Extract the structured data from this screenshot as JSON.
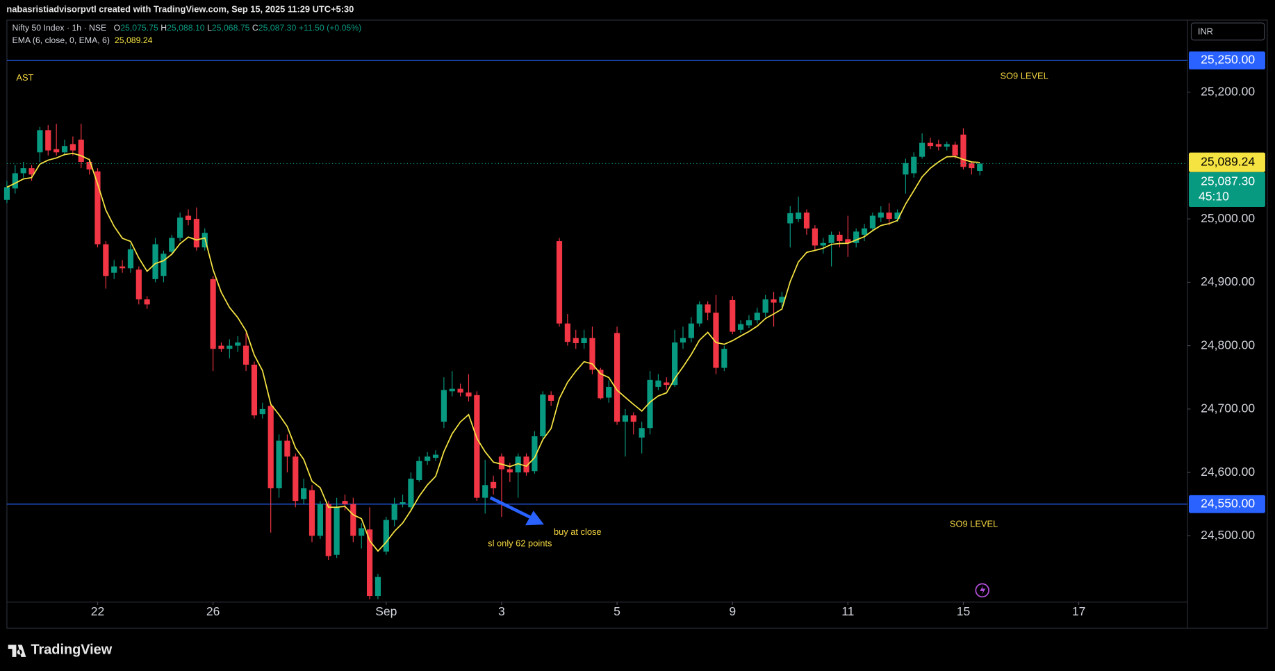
{
  "header": {
    "caption": "nabasristiadvisorpvtl created with TradingView.com, Sep 15, 2025 11:29 UTC+5:30",
    "currency": "INR",
    "brand": "TradingView"
  },
  "legend": {
    "symbol": "Nifty 50 Index · 1h · NSE",
    "ohlc_letters": [
      "O",
      "H",
      "L",
      "C"
    ],
    "open": "25,075.75",
    "high": "25,088.10",
    "low": "25,068.75",
    "close": "25,087.30",
    "change": "+11.50 (+0.05%)"
  },
  "annotations": {
    "ast": "AST",
    "so9_top": "SO9 LEVEL",
    "so9_bottom": "SO9 LEVEL",
    "buy": "buy at close",
    "sl": "sl only 62 points"
  },
  "chart_data": {
    "type": "candlestick",
    "up_color": "#089981",
    "down_color": "#f23645",
    "open": [
      25030,
      25048,
      25072,
      25080,
      25105,
      25140,
      25110,
      25105,
      25118,
      25125,
      25090,
      25075,
      24960,
      24915,
      24925,
      24922,
      24920,
      24873,
      24905,
      24910,
      24948,
      24970,
      25005,
      25000,
      24955,
      24905,
      24800,
      24795,
      24800,
      24800,
      24770,
      24692,
      24705,
      24575,
      24650,
      24625,
      24558,
      24572,
      24500,
      24550,
      24470,
      24555,
      24550,
      24500,
      24510,
      24405,
      24475,
      24525,
      24550,
      24545,
      24588,
      24618,
      24623,
      24680,
      24728,
      24732,
      24726,
      24722,
      24560,
      24585,
      24625,
      24605,
      24600,
      24625,
      24602,
      24657,
      24722,
      24965,
      24835,
      24812,
      24804,
      24812,
      24762,
      24718,
      24820,
      24680,
      24690,
      24655,
      24670,
      24735,
      24742,
      24738,
      24805,
      24812,
      24835,
      24865,
      24852,
      24765,
      24872,
      24825,
      24832,
      24840,
      24852,
      24873,
      24868,
      24993,
      25000,
      25010,
      24985,
      24958,
      24962,
      24975,
      24968,
      24962,
      24975,
      24985,
      25002,
      25010,
      25000,
      25070,
      25072,
      25098,
      25120,
      25118,
      25114,
      25117,
      25133,
      25088,
      25075.75
    ],
    "high": [
      25060,
      25085,
      25090,
      25085,
      25145,
      25148,
      25150,
      25125,
      25130,
      25150,
      25095,
      25080,
      24965,
      24935,
      24935,
      24960,
      24925,
      24878,
      24970,
      24950,
      24975,
      25010,
      25015,
      25018,
      24985,
      24910,
      24805,
      24810,
      24815,
      24820,
      24775,
      24710,
      24710,
      24660,
      24660,
      24630,
      24590,
      24580,
      24555,
      24555,
      24560,
      24565,
      24560,
      24520,
      24545,
      24440,
      24530,
      24560,
      24565,
      24600,
      24625,
      24632,
      24635,
      24750,
      24760,
      24740,
      24755,
      24728,
      24620,
      24595,
      24630,
      24615,
      24630,
      24630,
      24665,
      24728,
      24728,
      24970,
      24850,
      24825,
      24825,
      24830,
      24765,
      24745,
      24830,
      24700,
      24695,
      24680,
      24760,
      24755,
      24750,
      24825,
      24830,
      24845,
      24870,
      24870,
      24880,
      24800,
      24878,
      24840,
      24848,
      24860,
      24880,
      24885,
      24885,
      25020,
      25035,
      25015,
      24990,
      24970,
      24980,
      24980,
      25005,
      24985,
      24992,
      25010,
      25020,
      25025,
      25015,
      25095,
      25105,
      25135,
      25128,
      25125,
      25122,
      25122,
      25143,
      25090,
      25088.1
    ],
    "low": [
      25025,
      25040,
      25065,
      25060,
      25090,
      25100,
      25100,
      25100,
      25100,
      25080,
      25070,
      24955,
      24890,
      24905,
      24915,
      24915,
      24865,
      24858,
      24900,
      24900,
      24945,
      24965,
      24990,
      24950,
      24950,
      24760,
      24790,
      24780,
      24790,
      24760,
      24685,
      24685,
      24505,
      24560,
      24600,
      24545,
      24550,
      24490,
      24495,
      24462,
      24465,
      24540,
      24490,
      24480,
      24400,
      24400,
      24470,
      24515,
      24545,
      24540,
      24585,
      24612,
      24618,
      24670,
      24720,
      24720,
      24712,
      24555,
      24535,
      24565,
      24530,
      24585,
      24560,
      24595,
      24598,
      24650,
      24705,
      24830,
      24800,
      24795,
      24795,
      24755,
      24715,
      24710,
      24675,
      24625,
      24660,
      24630,
      24660,
      24730,
      24730,
      24735,
      24795,
      24805,
      24830,
      24840,
      24755,
      24760,
      24818,
      24820,
      24828,
      24835,
      24845,
      24830,
      24860,
      24955,
      24995,
      24975,
      24950,
      24945,
      24925,
      24955,
      24940,
      24955,
      24965,
      24980,
      24995,
      24990,
      24995,
      25040,
      25065,
      25095,
      25110,
      25108,
      25108,
      25095,
      25078,
      25070,
      25068.75
    ],
    "close": [
      25050,
      25072,
      25080,
      25070,
      25140,
      25108,
      25105,
      25115,
      25108,
      25090,
      25078,
      24960,
      24910,
      24925,
      24922,
      24952,
      24873,
      24865,
      24960,
      24945,
      24970,
      25002,
      24998,
      24955,
      24978,
      24795,
      24795,
      24800,
      24805,
      24770,
      24690,
      24700,
      24575,
      24650,
      24625,
      24555,
      24575,
      24500,
      24550,
      24468,
      24545,
      24550,
      24500,
      24512,
      24405,
      24435,
      24525,
      24550,
      24553,
      24590,
      24618,
      24625,
      24628,
      24730,
      24732,
      24726,
      24720,
      24560,
      24580,
      24575,
      24605,
      24600,
      24625,
      24600,
      24657,
      24723,
      24713,
      24835,
      24806,
      24804,
      24812,
      24762,
      24717,
      24735,
      24680,
      24690,
      24680,
      24670,
      24746,
      24745,
      24738,
      24805,
      24812,
      24835,
      24865,
      24852,
      24765,
      24795,
      24822,
      24834,
      24840,
      24852,
      24873,
      24868,
      24877,
      25009,
      25010,
      24985,
      24958,
      24962,
      24975,
      24965,
      24962,
      24980,
      24985,
      25005,
      25010,
      25000,
      25010,
      25088,
      25098,
      25120,
      25115,
      25114,
      25118,
      25100,
      25082,
      25080,
      25087.3
    ],
    "xlim": [
      0,
      143
    ],
    "ylim": [
      24396,
      25313
    ],
    "xticks": [
      {
        "value": 11,
        "label": "22"
      },
      {
        "value": 25,
        "label": "26"
      },
      {
        "value": 46,
        "label": "Sep"
      },
      {
        "value": 60,
        "label": "3"
      },
      {
        "value": 74,
        "label": "5"
      },
      {
        "value": 88,
        "label": "9"
      },
      {
        "value": 102,
        "label": "11"
      },
      {
        "value": 116,
        "label": "15"
      },
      {
        "value": 130,
        "label": "17"
      }
    ],
    "yticks": [
      {
        "value": 24500,
        "label": "24,500.00"
      },
      {
        "value": 24600,
        "label": "24,600.00"
      },
      {
        "value": 24700,
        "label": "24,700.00"
      },
      {
        "value": 24800,
        "label": "24,800.00"
      },
      {
        "value": 24900,
        "label": "24,900.00"
      },
      {
        "value": 25000,
        "label": "25,000.00"
      },
      {
        "value": 25200,
        "label": "25,200.00"
      }
    ],
    "levels": [
      {
        "value": 25250,
        "label": "25,250.00",
        "color": "#2962ff"
      },
      {
        "value": 24550,
        "label": "24,550.00",
        "color": "#2962ff"
      }
    ],
    "ema": {
      "name": "EMA (6, close, 0, EMA, 6)",
      "period": 6,
      "color": "#f5e342",
      "last": 25089.24,
      "last_label": "25,089.24"
    },
    "countdown": "45:10"
  }
}
